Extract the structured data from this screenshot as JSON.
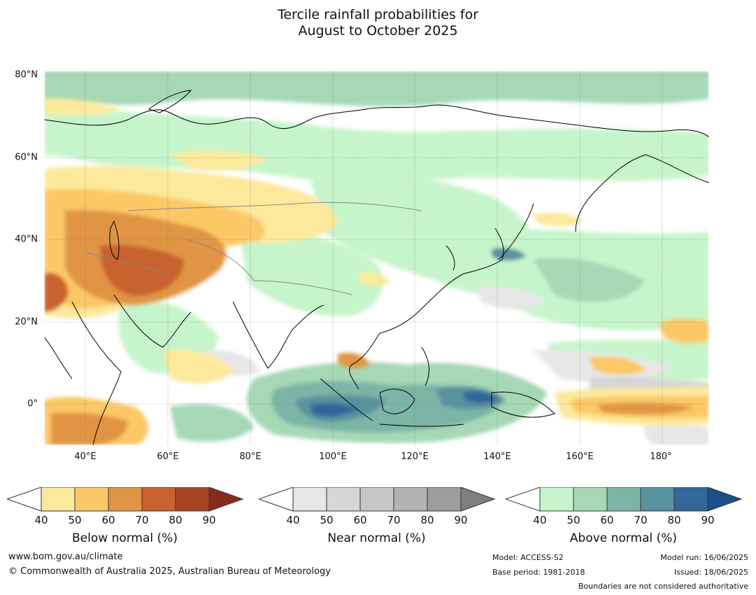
{
  "title": {
    "line1": "Tercile rainfall probabilities for",
    "line2": "August to October 2025"
  },
  "map": {
    "lat_labels": [
      "80°N",
      "60°N",
      "40°N",
      "20°N",
      "0°"
    ],
    "lon_labels": [
      "40°E",
      "60°E",
      "80°E",
      "100°E",
      "120°E",
      "140°E",
      "160°E",
      "180°"
    ],
    "extent": {
      "lon": [
        30,
        191
      ],
      "lat": [
        -10,
        81
      ]
    }
  },
  "colorbars": [
    {
      "title": "Below normal (%)",
      "ticks": [
        "40",
        "50",
        "60",
        "70",
        "80",
        "90"
      ],
      "colors": [
        "#ffffff",
        "#fde99c",
        "#fcc866",
        "#e09545",
        "#c8622f",
        "#a84424",
        "#862c1c"
      ]
    },
    {
      "title": "Near normal (%)",
      "ticks": [
        "40",
        "50",
        "60",
        "70",
        "80",
        "90"
      ],
      "colors": [
        "#ffffff",
        "#e6e6e6",
        "#d6d6d6",
        "#c7c7c7",
        "#b3b3b3",
        "#9d9d9d",
        "#7f7f7f"
      ]
    },
    {
      "title": "Above normal (%)",
      "ticks": [
        "40",
        "50",
        "60",
        "70",
        "80",
        "90"
      ],
      "colors": [
        "#ffffff",
        "#c6f5cb",
        "#a6d8b6",
        "#7bb5a6",
        "#5a92a0",
        "#336699",
        "#1b4f8a"
      ]
    }
  ],
  "footer": {
    "website": "www.bom.gov.au/climate",
    "copyright": "© Commonwealth of Australia 2025, Australian Bureau of Meteorology",
    "model": "Model: ACCESS-S2",
    "base_period": "Base period: 1981-2018",
    "model_run": "Model run: 16/06/2025",
    "issued": "Issued: 18/06/2025",
    "boundaries": "Boundaries are not considered authoritative"
  }
}
